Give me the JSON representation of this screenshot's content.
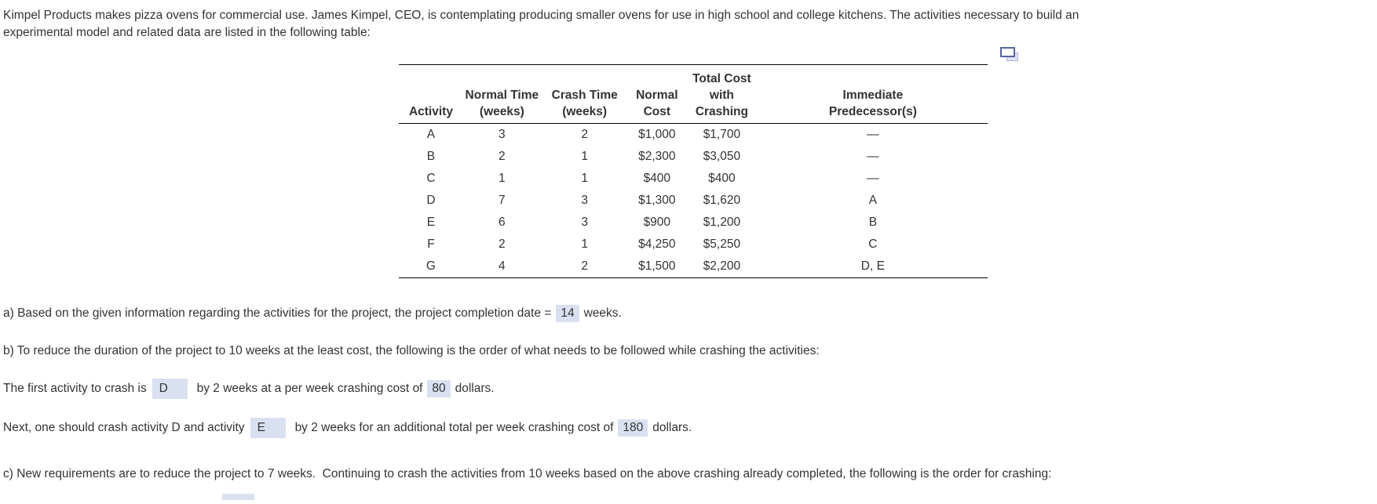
{
  "intro": {
    "line1": "Kimpel Products makes pizza ovens for commercial use. James Kimpel, CEO, is contemplating producing smaller ovens for use in high school and college kitchens. The activities necessary to build an",
    "line2": "experimental model and related data are listed in the following table:"
  },
  "icons": {
    "popup_table": "open-table-in-new-window-icon"
  },
  "table": {
    "headers": [
      {
        "lines": [
          "Activity"
        ]
      },
      {
        "lines": [
          "Normal Time",
          "(weeks)"
        ]
      },
      {
        "lines": [
          "Crash Time",
          "(weeks)"
        ]
      },
      {
        "lines": [
          "Normal",
          "Cost"
        ]
      },
      {
        "lines": [
          "Total Cost",
          "with",
          "Crashing"
        ]
      },
      {
        "lines": [
          "Immediate",
          "Predecessor(s)"
        ]
      }
    ],
    "rows": [
      [
        "A",
        "3",
        "2",
        "$1,000",
        "$1,700",
        "—"
      ],
      [
        "B",
        "2",
        "1",
        "$2,300",
        "$3,050",
        "—"
      ],
      [
        "C",
        "1",
        "1",
        "$400",
        "$400",
        "—"
      ],
      [
        "D",
        "7",
        "3",
        "$1,300",
        "$1,620",
        "A"
      ],
      [
        "E",
        "6",
        "3",
        "$900",
        "$1,200",
        "B"
      ],
      [
        "F",
        "2",
        "1",
        "$4,250",
        "$5,250",
        "C"
      ],
      [
        "G",
        "4",
        "2",
        "$1,500",
        "$2,200",
        "D, E"
      ]
    ]
  },
  "qa": {
    "prefix": "a) Based on the given information regarding the activities for the project, the project completion date =",
    "answer": "14",
    "suffix": "weeks."
  },
  "qb": {
    "text": "b) To reduce the duration of the project to 10 weeks at the least cost, the following is the order of what needs to be followed while crashing the activities:"
  },
  "first_crash": {
    "prefix": "The first activity to crash is",
    "activity": "D",
    "mid": "by 2 weeks at a per week crashing cost of",
    "cost": "80",
    "suffix": "dollars."
  },
  "next_crash": {
    "prefix": "Next, one should crash activity D and activity",
    "activity": "E",
    "mid": "by 2 weeks for an additional total per week crashing cost of",
    "cost": "180",
    "suffix": "dollars."
  },
  "qc": {
    "text": "c) New requirements are to reduce the project to 7 weeks.  Continuing to crash the activities from 10 weeks based on the above crashing already completed, the following is the order for crashing:"
  },
  "colors": {
    "answer_highlight": "#d9e1f0",
    "icon_front_border": "#56649f",
    "icon_back_fill": "#dde2f3",
    "text": "#333333"
  }
}
